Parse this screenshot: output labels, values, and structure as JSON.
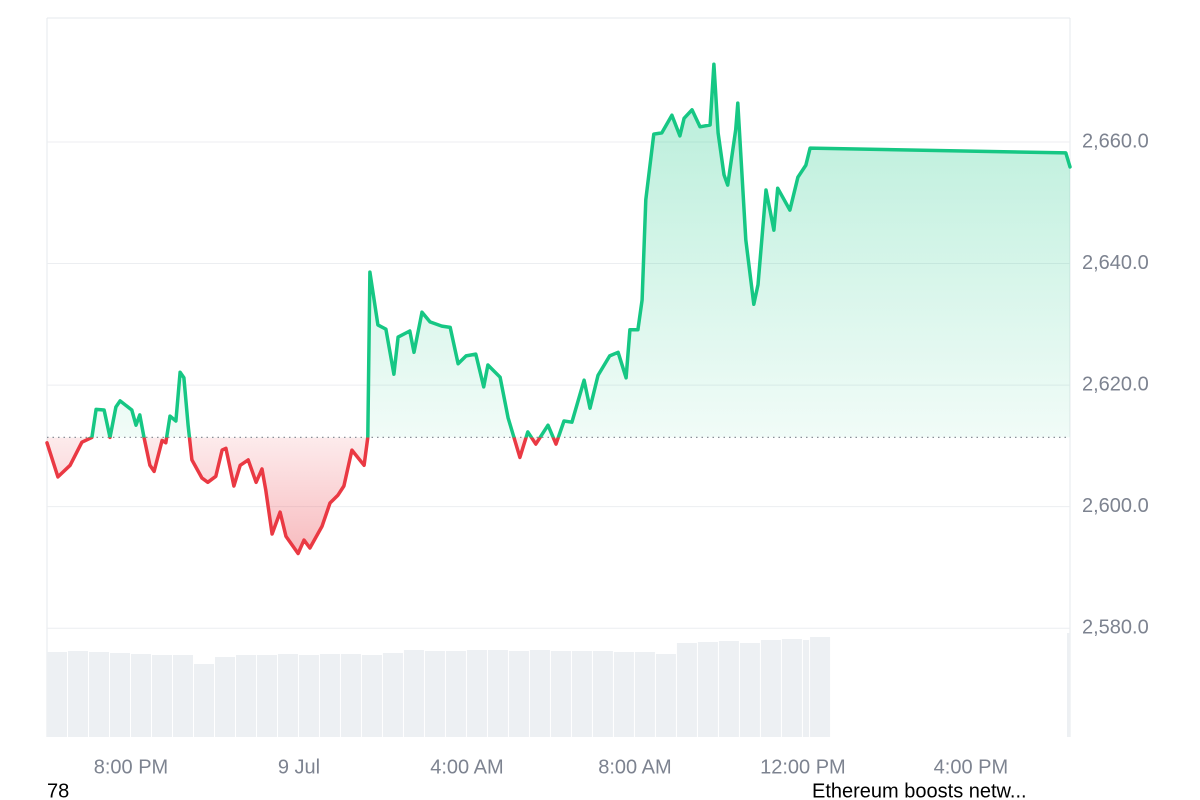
{
  "chart_data": {
    "type": "line",
    "x": [
      -6.0,
      -5.74,
      -5.45,
      -5.17,
      -4.93,
      -4.83,
      -4.64,
      -4.5,
      -4.36,
      -4.26,
      -3.98,
      -3.88,
      -3.79,
      -3.69,
      -3.55,
      -3.45,
      -3.26,
      -3.17,
      -3.07,
      -2.93,
      -2.83,
      -2.74,
      -2.64,
      -2.55,
      -2.31,
      -2.17,
      -1.98,
      -1.83,
      -1.74,
      -1.55,
      -1.4,
      -1.21,
      -1.02,
      -0.88,
      -0.79,
      -0.64,
      -0.45,
      -0.31,
      -0.02,
      0.12,
      0.26,
      0.55,
      0.74,
      0.93,
      1.07,
      1.26,
      1.55,
      1.64,
      1.69,
      1.88,
      2.07,
      2.26,
      2.36,
      2.64,
      2.74,
      2.93,
      3.12,
      3.4,
      3.6,
      3.79,
      3.98,
      4.21,
      4.4,
      4.5,
      4.79,
      4.98,
      5.26,
      5.45,
      5.64,
      5.93,
      6.12,
      6.31,
      6.5,
      6.79,
      6.93,
      7.12,
      7.4,
      7.6,
      7.79,
      7.88,
      8.07,
      8.17,
      8.26,
      8.45,
      8.64,
      8.88,
      9.07,
      9.17,
      9.36,
      9.55,
      9.79,
      9.88,
      9.98,
      10.12,
      10.21,
      10.4,
      10.45,
      10.64,
      10.83,
      10.93,
      11.12,
      11.31,
      11.4,
      11.69,
      11.88,
      12.07,
      12.17,
      18.26,
      18.36
    ],
    "series": [
      {
        "color": "#16c784",
        "color_below": "#ea3943",
        "values": [
          2610.5,
          2604.9,
          2606.8,
          2610.6,
          2611.4,
          2616.0,
          2615.9,
          2611.4,
          2616.4,
          2617.4,
          2615.9,
          2613.4,
          2615.1,
          2611.4,
          2606.8,
          2605.8,
          2610.9,
          2610.5,
          2614.9,
          2614.1,
          2622.1,
          2621.2,
          2613.4,
          2607.7,
          2604.7,
          2604.0,
          2605.0,
          2609.3,
          2609.6,
          2603.4,
          2606.8,
          2607.7,
          2604.0,
          2606.2,
          2602.7,
          2595.5,
          2599.1,
          2595.1,
          2592.3,
          2594.5,
          2593.2,
          2596.8,
          2600.6,
          2601.9,
          2603.4,
          2609.3,
          2606.8,
          2611.4,
          2638.6,
          2629.9,
          2629.2,
          2621.8,
          2627.9,
          2628.9,
          2625.4,
          2632.0,
          2630.4,
          2629.7,
          2629.5,
          2623.5,
          2624.8,
          2625.1,
          2619.7,
          2623.3,
          2621.3,
          2614.6,
          2608.1,
          2612.3,
          2610.3,
          2613.4,
          2610.3,
          2614.1,
          2613.9,
          2620.8,
          2616.2,
          2621.6,
          2624.8,
          2625.4,
          2621.2,
          2629.1,
          2629.1,
          2634.0,
          2650.5,
          2661.3,
          2661.5,
          2664.4,
          2661.0,
          2663.9,
          2665.3,
          2662.5,
          2662.8,
          2672.8,
          2661.5,
          2654.6,
          2652.9,
          2662.0,
          2666.4,
          2643.9,
          2633.3,
          2636.5,
          2652.1,
          2645.5,
          2652.4,
          2648.8,
          2654.2,
          2656.2,
          2659.0,
          2658.2,
          2655.9
        ]
      }
    ],
    "baseline": 2611.4,
    "xlim": [
      -6,
      18.36
    ],
    "xticks": [
      {
        "value": -4,
        "label": "8:00 PM"
      },
      {
        "value": 0,
        "label": "9 Jul"
      },
      {
        "value": 4,
        "label": "4:00 AM"
      },
      {
        "value": 8,
        "label": "8:00 AM"
      },
      {
        "value": 12,
        "label": "12:00 PM"
      },
      {
        "value": 16,
        "label": "4:00 PM"
      }
    ],
    "ylim": [
      2562.1,
      2680.4
    ],
    "yticks": [
      {
        "value": 2580,
        "label": "2,580.0"
      },
      {
        "value": 2600,
        "label": "2,600.0"
      },
      {
        "value": 2620,
        "label": "2,620.0"
      },
      {
        "value": 2640,
        "label": "2,640.0"
      },
      {
        "value": 2660,
        "label": "2,660.0"
      }
    ],
    "grid": true,
    "volume": {
      "color": "#edf0f3",
      "x": [
        -6,
        -5.5,
        -5,
        -4.5,
        -4,
        -3.5,
        -3,
        -2.5,
        -2,
        -1.5,
        -1,
        -0.5,
        0,
        0.5,
        1,
        1.5,
        2,
        2.5,
        3,
        3.5,
        4,
        4.5,
        5,
        5.5,
        6,
        6.5,
        7,
        7.5,
        8,
        8.5,
        9,
        9.5,
        10,
        10.5,
        11,
        11.5,
        12,
        12.17,
        18.36
      ],
      "values": [
        85,
        86,
        85,
        84,
        83,
        82,
        82,
        73,
        80,
        82,
        82,
        83,
        82,
        83,
        83,
        82,
        84,
        87,
        86,
        86,
        87,
        87,
        86,
        87,
        86,
        86,
        86,
        85,
        85,
        83,
        94,
        95,
        96,
        94,
        97,
        98,
        97,
        100,
        104
      ]
    }
  },
  "footer": {
    "left": "78",
    "right": "Ethereum boosts netw..."
  }
}
